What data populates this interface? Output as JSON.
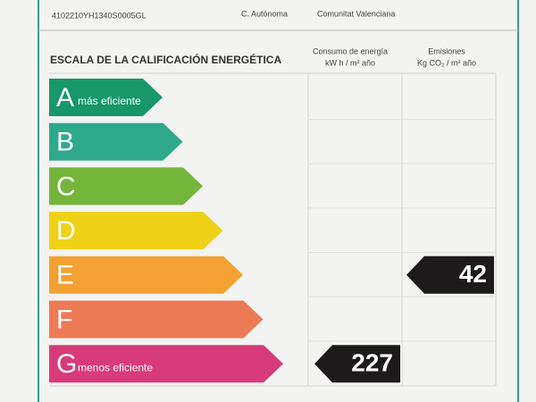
{
  "header": {
    "reference": "4102210YH1340S0005GL",
    "region_label": "C. Autónoma",
    "region": "Comunitat Valenciana"
  },
  "scale": {
    "title": "ESCALA DE LA CALIFICACIÓN ENERGÉTICA",
    "columns": [
      {
        "title": "Consumo de energía",
        "unit": "kW h / m² año"
      },
      {
        "title": "Emisiones",
        "unit": "Kg CO₂ / m² año"
      }
    ],
    "ratings": [
      {
        "letter": "A",
        "label": "más eficiente",
        "color": "#17976a"
      },
      {
        "letter": "B",
        "color": "#2fa98b"
      },
      {
        "letter": "C",
        "color": "#74b53c"
      },
      {
        "letter": "D",
        "color": "#efd117"
      },
      {
        "letter": "E",
        "color": "#f3a132"
      },
      {
        "letter": "F",
        "color": "#ec7a55"
      },
      {
        "letter": "G",
        "label": "menos eficiente",
        "color": "#d83b7a"
      }
    ],
    "results": [
      {
        "rating": "G",
        "value": 227
      },
      {
        "rating": "E",
        "value": 42
      }
    ]
  }
}
